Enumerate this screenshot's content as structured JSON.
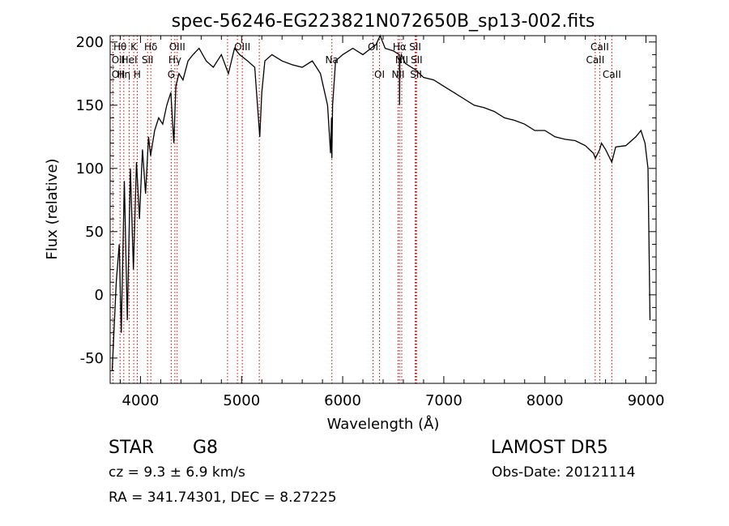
{
  "chart_data": {
    "type": "line",
    "title": "spec-56246-EG223821N072650B_sp13-002.fits",
    "xlabel": "Wavelength (Å)",
    "ylabel": "Flux (relative)",
    "xlim": [
      3700,
      9100
    ],
    "ylim": [
      -70,
      205
    ],
    "xticks": [
      4000,
      5000,
      6000,
      7000,
      8000,
      9000
    ],
    "yticks": [
      -50,
      0,
      50,
      100,
      150,
      200
    ],
    "grid": false,
    "line_color": "#000000",
    "marker_color": "#cc0000",
    "spectrum": {
      "x": [
        3720,
        3760,
        3790,
        3810,
        3840,
        3870,
        3900,
        3930,
        3960,
        3990,
        4020,
        4050,
        4080,
        4100,
        4140,
        4180,
        4220,
        4260,
        4300,
        4330,
        4350,
        4380,
        4420,
        4470,
        4520,
        4580,
        4650,
        4720,
        4800,
        4870,
        4930,
        4980,
        5060,
        5130,
        5180,
        5200,
        5230,
        5300,
        5400,
        5500,
        5600,
        5700,
        5780,
        5850,
        5880,
        5890,
        5893,
        5900,
        5930,
        6000,
        6100,
        6200,
        6280,
        6330,
        6370,
        6420,
        6500,
        6560,
        6563,
        6566,
        6580,
        6620,
        6680,
        6720,
        6800,
        6900,
        7000,
        7100,
        7200,
        7300,
        7400,
        7500,
        7600,
        7700,
        7800,
        7900,
        8000,
        8100,
        8200,
        8300,
        8400,
        8480,
        8500,
        8542,
        8560,
        8600,
        8662,
        8700,
        8800,
        8900,
        8950,
        8990,
        9020,
        9040
      ],
      "y": [
        -60,
        10,
        40,
        -30,
        90,
        -20,
        100,
        20,
        105,
        60,
        115,
        80,
        125,
        110,
        130,
        140,
        135,
        150,
        160,
        120,
        165,
        175,
        170,
        185,
        190,
        195,
        185,
        180,
        190,
        175,
        195,
        190,
        185,
        180,
        125,
        160,
        185,
        190,
        185,
        182,
        180,
        185,
        175,
        150,
        112,
        140,
        108,
        150,
        185,
        190,
        195,
        190,
        195,
        198,
        205,
        195,
        193,
        190,
        150,
        185,
        190,
        183,
        180,
        178,
        172,
        170,
        165,
        160,
        155,
        150,
        148,
        145,
        140,
        138,
        135,
        130,
        130,
        125,
        123,
        122,
        118,
        112,
        108,
        115,
        120,
        115,
        105,
        117,
        118,
        125,
        130,
        120,
        100,
        -20
      ]
    },
    "line_markers": [
      {
        "name": "Hθ",
        "x": 3798,
        "row": 1
      },
      {
        "name": "OII",
        "x": 3727,
        "row": 2
      },
      {
        "name": "OII",
        "x": 3727,
        "row": 3
      },
      {
        "name": "K",
        "x": 3933,
        "row": 1
      },
      {
        "name": "HeI",
        "x": 3889,
        "row": 2
      },
      {
        "name": "Hη",
        "x": 3835,
        "row": 3
      },
      {
        "name": "H",
        "x": 3968,
        "row": 3
      },
      {
        "name": "SII",
        "x": 4070,
        "row": 2
      },
      {
        "name": "Hδ",
        "x": 4102,
        "row": 1
      },
      {
        "name": "OIII",
        "x": 4363,
        "row": 1
      },
      {
        "name": "Hγ",
        "x": 4340,
        "row": 2
      },
      {
        "name": "G",
        "x": 4304,
        "row": 3
      },
      {
        "name": "OIII",
        "x": 5007,
        "row": 1
      },
      {
        "name": "Na",
        "x": 5893,
        "row": 2
      },
      {
        "name": "OI",
        "x": 6300,
        "row": 1
      },
      {
        "name": "OI",
        "x": 6364,
        "row": 3
      },
      {
        "name": "Hα",
        "x": 6563,
        "row": 1
      },
      {
        "name": "SII",
        "x": 6717,
        "row": 1
      },
      {
        "name": "NII",
        "x": 6584,
        "row": 2
      },
      {
        "name": "SII",
        "x": 6731,
        "row": 2
      },
      {
        "name": "NII",
        "x": 6548,
        "row": 3
      },
      {
        "name": "SII",
        "x": 6725,
        "row": 3
      },
      {
        "name": "CaII",
        "x": 8542,
        "row": 1
      },
      {
        "name": "CaII",
        "x": 8498,
        "row": 2
      },
      {
        "name": "CaII",
        "x": 8662,
        "row": 3
      }
    ],
    "extra_marker_lines": [
      4861,
      4959,
      5175
    ]
  },
  "info": {
    "class": "STAR",
    "subclass": "G8",
    "survey": "LAMOST DR5",
    "cz": "cz = 9.3 ± 6.9 km/s",
    "obsdate": "Obs-Date: 20121114",
    "radec": "RA = 341.74301, DEC =   8.27225"
  }
}
